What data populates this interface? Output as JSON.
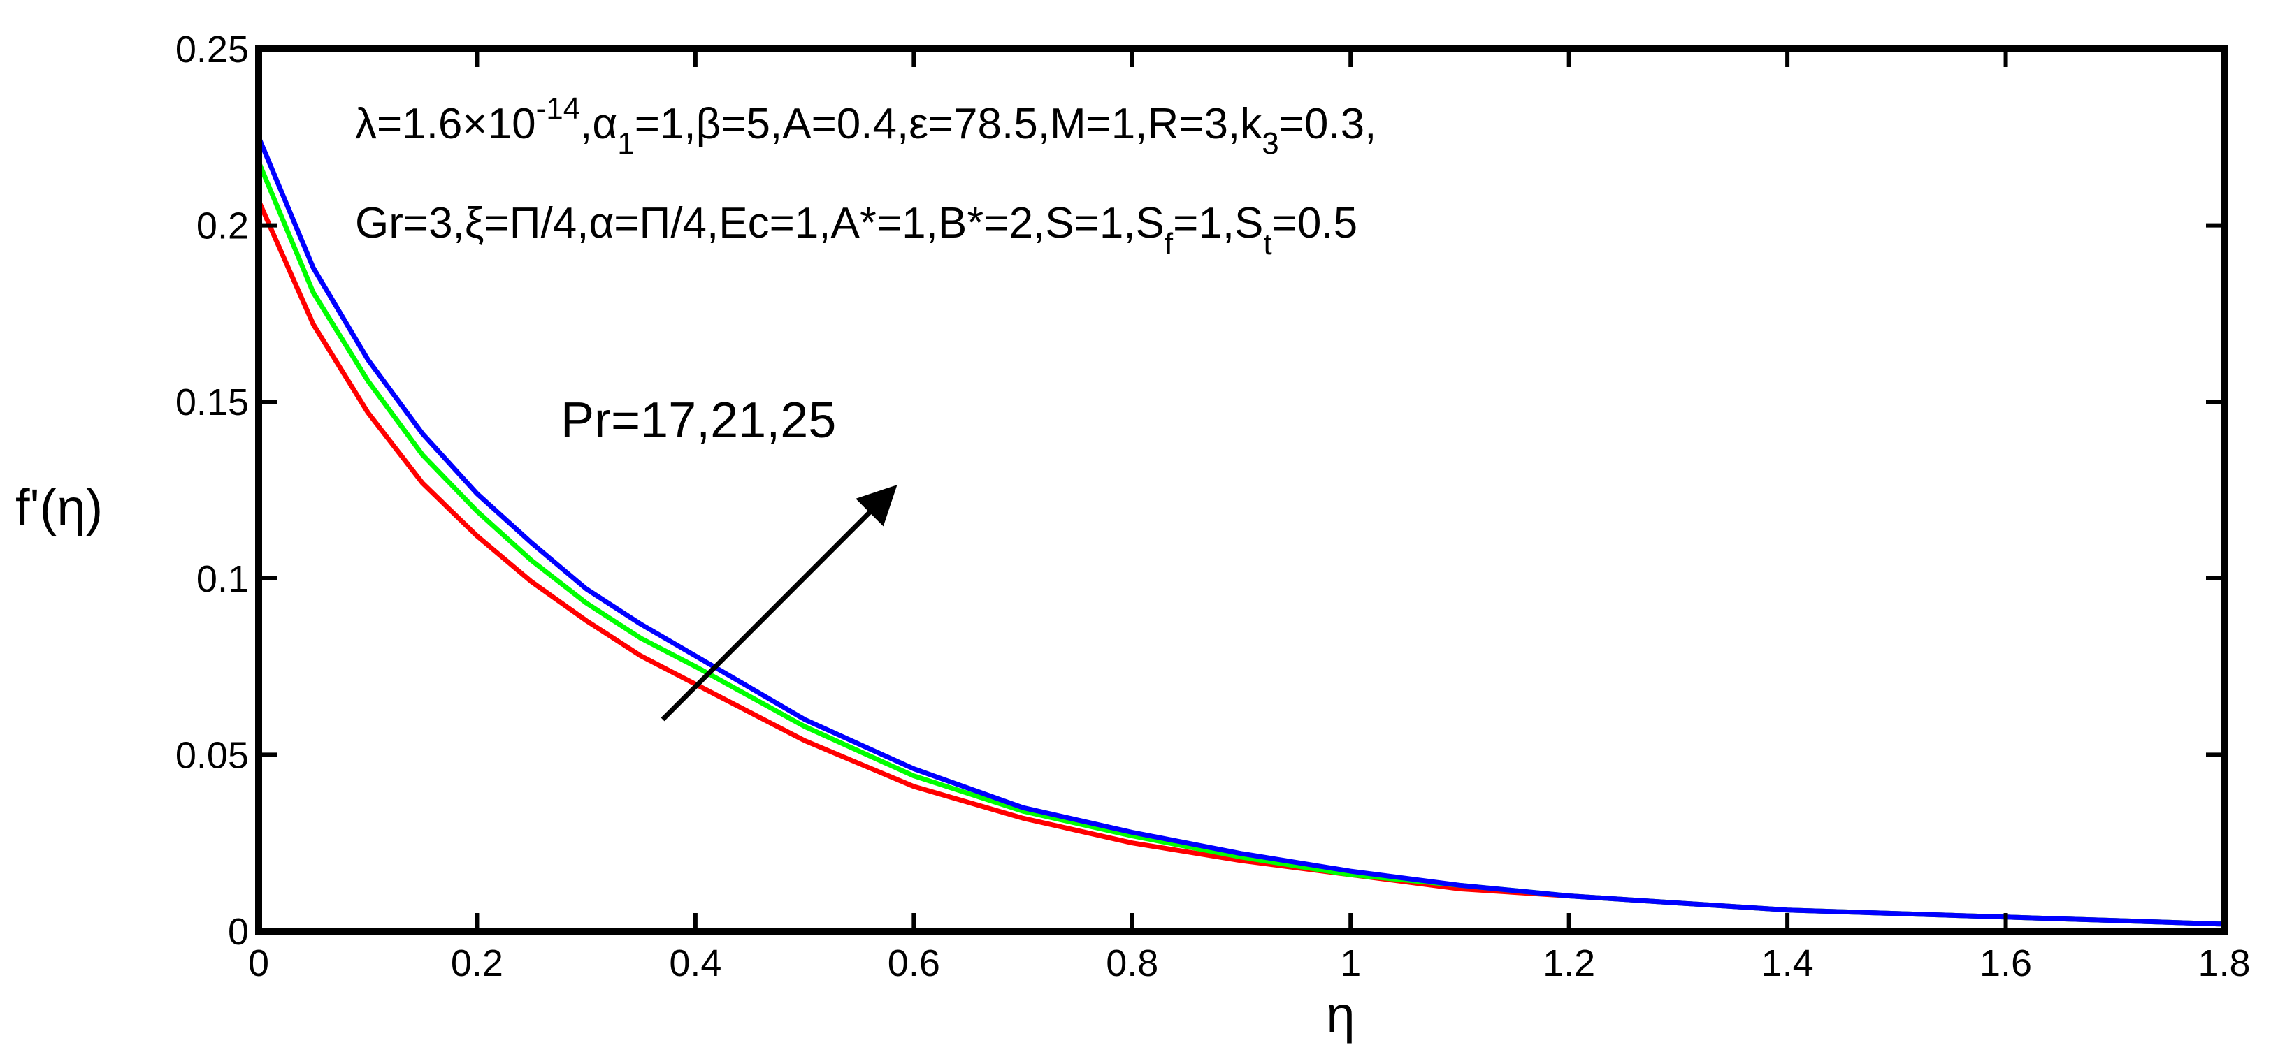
{
  "chart_data": {
    "type": "line",
    "xlabel": "η",
    "ylabel": "f'(η)",
    "xlim": [
      0,
      1.8
    ],
    "ylim": [
      0,
      0.25
    ],
    "x_ticks": [
      0,
      0.2,
      0.4,
      0.6,
      0.8,
      1,
      1.2,
      1.4,
      1.6,
      1.8
    ],
    "y_ticks": [
      0,
      0.05,
      0.1,
      0.15,
      0.2,
      0.25
    ],
    "x_tick_labels": [
      "0",
      "0.2",
      "0.4",
      "0.6",
      "0.8",
      "1",
      "1.2",
      "1.4",
      "1.6",
      "1.8"
    ],
    "y_tick_labels": [
      "0",
      "0.05",
      "0.1",
      "0.15",
      "0.2",
      "0.25"
    ],
    "grid": false,
    "x": [
      0,
      0.05,
      0.1,
      0.15,
      0.2,
      0.25,
      0.3,
      0.35,
      0.4,
      0.5,
      0.6,
      0.7,
      0.8,
      0.9,
      1.0,
      1.1,
      1.2,
      1.3,
      1.4,
      1.5,
      1.6,
      1.7,
      1.8
    ],
    "series": [
      {
        "color": "#ff0000",
        "values": [
          0.207,
          0.172,
          0.147,
          0.127,
          0.112,
          0.099,
          0.088,
          0.078,
          0.07,
          0.054,
          0.041,
          0.032,
          0.025,
          0.02,
          0.016,
          0.012,
          0.01,
          0.008,
          0.006,
          0.005,
          0.004,
          0.003,
          0.002
        ]
      },
      {
        "color": "#00ff00",
        "values": [
          0.218,
          0.181,
          0.156,
          0.135,
          0.119,
          0.105,
          0.093,
          0.083,
          0.075,
          0.058,
          0.044,
          0.034,
          0.027,
          0.021,
          0.016,
          0.013,
          0.01,
          0.008,
          0.006,
          0.005,
          0.004,
          0.003,
          0.002
        ]
      },
      {
        "color": "#0000ff",
        "values": [
          0.225,
          0.188,
          0.162,
          0.141,
          0.124,
          0.11,
          0.097,
          0.087,
          0.078,
          0.06,
          0.046,
          0.035,
          0.028,
          0.022,
          0.017,
          0.013,
          0.01,
          0.008,
          0.006,
          0.005,
          0.004,
          0.003,
          0.002
        ]
      }
    ],
    "annotations": {
      "parameters": {
        "line1": {
          "lambda_prefix": "λ=1.6×10",
          "lambda_exp": "-14",
          "alpha_prefix": ",α",
          "alpha_sub": "1",
          "rest": "=1,β=5,A=0.4,ε=78.5,M=1,R=3,k",
          "k_sub": "3",
          "k_tail": "=0.3,"
        },
        "line2": {
          "head": "Gr=3,ξ=Π/4,α=Π/4,Ec=1,A*=1,B*=2,S=1,S",
          "sf_sub": "f",
          "mid": "=1,S",
          "st_sub": "t",
          "tail": "=0.5"
        }
      },
      "trend_label": "Pr=17,21,25",
      "arrow": {
        "from": [
          0.37,
          0.06
        ],
        "to": [
          0.58,
          0.125
        ]
      }
    }
  }
}
